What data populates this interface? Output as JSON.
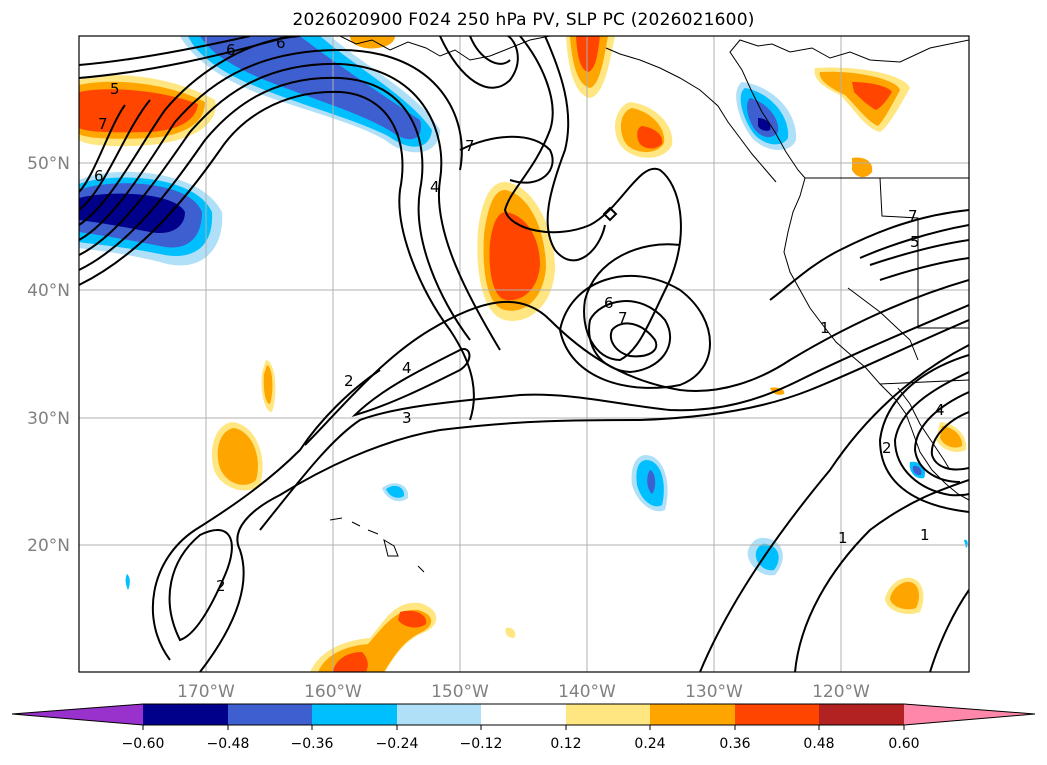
{
  "title": "2026020900 F024 250 hPa PV, SLP PC (2026021600)",
  "map": {
    "lon_min": -180,
    "lon_max": -110,
    "lat_min": 10,
    "lat_max": 60,
    "lat_labels": [
      "50°N",
      "40°N",
      "30°N",
      "20°N"
    ],
    "lon_labels": [
      "170°W",
      "160°W",
      "150°W",
      "140°W",
      "130°W",
      "120°W"
    ],
    "contour_labels": [
      "5",
      "6",
      "7",
      "7",
      "6",
      "6",
      "4",
      "2",
      "4",
      "3",
      "2",
      "6",
      "7",
      "1",
      "7",
      "5",
      "4",
      "2",
      "1",
      "1"
    ]
  },
  "colorbar": {
    "tick_labels": [
      "−0.60",
      "−0.48",
      "−0.36",
      "−0.24",
      "−0.12",
      "0.12",
      "0.24",
      "0.36",
      "0.48",
      "0.60"
    ],
    "colors": [
      "#9932cc",
      "#00008b",
      "#3e5fcf",
      "#00bfff",
      "#b0e0f8",
      "#ffffff",
      "#ffe680",
      "#ffa500",
      "#ff4500",
      "#b22222",
      "#ff88aa"
    ]
  },
  "shading_colors": {
    "neg1": "#b0e0f8",
    "neg2": "#00bfff",
    "neg3": "#3e5fcf",
    "neg4": "#00008b",
    "pos1": "#ffe680",
    "pos2": "#ffa500",
    "pos3": "#ff4500"
  }
}
